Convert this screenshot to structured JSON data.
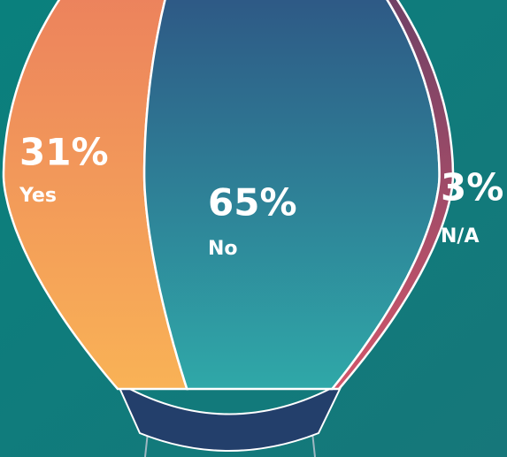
{
  "chart_data": {
    "type": "balloon",
    "categories": [
      "Yes",
      "No",
      "N/A"
    ],
    "values": [
      31,
      65,
      3
    ],
    "value_labels": [
      "31%",
      "65%",
      "3%"
    ],
    "colors": [
      [
        "#e8735f",
        "#f9b256"
      ],
      [
        "#2d3f7a",
        "#2fa8a8"
      ],
      [
        "#4f3a64",
        "#d2566a"
      ]
    ]
  }
}
